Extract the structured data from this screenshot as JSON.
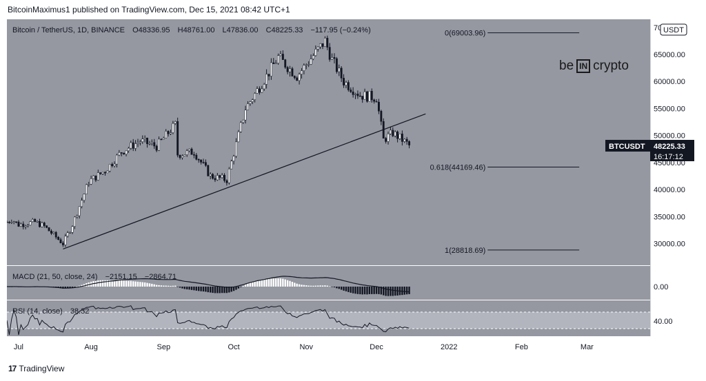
{
  "header": {
    "published": "BitcoinMaximus1 published on TradingView.com, Dec 15, 2021 08:42 UTC+1"
  },
  "legend": {
    "symbol": "Bitcoin / TetherUS, 1D, BINANCE",
    "o_label": "O",
    "o_value": "48336.95",
    "h_label": "H",
    "h_value": "48761.00",
    "l_label": "L",
    "l_value": "47836.00",
    "c_label": "C",
    "c_value": "48225.33",
    "change": "−117.95 (−0.24%)"
  },
  "macd_legend": {
    "label": "MACD (21, 50, close, 24)",
    "v1": "−2151.15",
    "v2": "−2864.71"
  },
  "rsi_legend": {
    "label": "RSI (14, close)",
    "value": "38.32"
  },
  "price_axis": {
    "currency": "USDT",
    "ticks": [
      "70000.00",
      "65000.00",
      "60000.00",
      "55000.00",
      "50000.00",
      "45000.00",
      "40000.00",
      "35000.00",
      "30000.00"
    ],
    "macd_tick": "0.00",
    "rsi_tick": "40.00"
  },
  "symbol_tag": {
    "label": "BTCUSDT",
    "price": "48225.33",
    "countdown": "16:17:12"
  },
  "time_axis": [
    "Jul",
    "Aug",
    "Sep",
    "Oct",
    "Nov",
    "Dec",
    "2022",
    "Feb",
    "Mar"
  ],
  "fib_levels": [
    {
      "label": "0(69003.96)",
      "value": 69003.96
    },
    {
      "label": "0.618(44169.46)",
      "value": 44169.46
    },
    {
      "label": "1(28818.69)",
      "value": 28818.69
    }
  ],
  "brand": {
    "pre": "be",
    "box": "IN",
    "post": "crypto"
  },
  "footer": {
    "logo": "17",
    "text": "TradingView"
  },
  "colors": {
    "background": "#9598a1",
    "up": "#ffffff",
    "down": "#131722",
    "trendline": "#131722",
    "rsi_band": "#b2b5be",
    "rsi_signal": "#4caf50"
  },
  "chart_data": {
    "type": "candlestick",
    "symbol": "BTCUSDT",
    "interval": "1D",
    "ylim": [
      26000,
      71500
    ],
    "path_points": [
      {
        "date": "2021-06-26",
        "price": 34000
      },
      {
        "date": "2021-06-28",
        "price": 34500
      },
      {
        "date": "2021-07-01",
        "price": 33500
      },
      {
        "date": "2021-07-08",
        "price": 34000
      },
      {
        "date": "2021-07-12",
        "price": 33200
      },
      {
        "date": "2021-07-20",
        "price": 30000
      },
      {
        "date": "2021-07-24",
        "price": 33500
      },
      {
        "date": "2021-07-31",
        "price": 41500
      },
      {
        "date": "2021-08-07",
        "price": 43500
      },
      {
        "date": "2021-08-14",
        "price": 47000
      },
      {
        "date": "2021-08-22",
        "price": 49000
      },
      {
        "date": "2021-08-29",
        "price": 48000
      },
      {
        "date": "2021-09-06",
        "price": 52000
      },
      {
        "date": "2021-09-07",
        "price": 46500
      },
      {
        "date": "2021-09-14",
        "price": 47000
      },
      {
        "date": "2021-09-21",
        "price": 42500
      },
      {
        "date": "2021-09-28",
        "price": 41800
      },
      {
        "date": "2021-10-06",
        "price": 55000
      },
      {
        "date": "2021-10-15",
        "price": 61000
      },
      {
        "date": "2021-10-20",
        "price": 64500
      },
      {
        "date": "2021-10-28",
        "price": 61000
      },
      {
        "date": "2021-11-09",
        "price": 67500
      },
      {
        "date": "2021-11-12",
        "price": 64000
      },
      {
        "date": "2021-11-17",
        "price": 60000
      },
      {
        "date": "2021-11-24",
        "price": 57500
      },
      {
        "date": "2021-12-01",
        "price": 57000
      },
      {
        "date": "2021-12-04",
        "price": 49200
      },
      {
        "date": "2021-12-08",
        "price": 50500
      },
      {
        "date": "2021-12-15",
        "price": 48225.33
      }
    ],
    "trendline": [
      {
        "date": "2021-07-20",
        "price": 29000
      },
      {
        "date": "2021-12-22",
        "price": 54000
      }
    ],
    "last_price": 48225.33
  }
}
